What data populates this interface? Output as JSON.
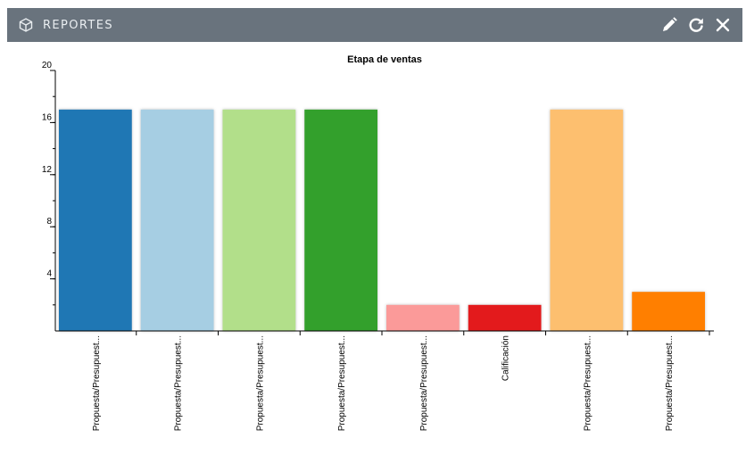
{
  "window": {
    "title": "REPORTES",
    "header_color": "#69737d",
    "icons": [
      "cube-icon",
      "pencil-icon",
      "refresh-icon",
      "close-icon"
    ]
  },
  "chart_data": {
    "type": "bar",
    "title": "Etapa de ventas",
    "xlabel": "",
    "ylabel": "",
    "ylim": [
      0,
      20
    ],
    "yticks": [
      4,
      8,
      12,
      16,
      20
    ],
    "grid": false,
    "categories": [
      "Propuesta/Presupuest...",
      "Propuesta/Presupuest...",
      "Propuesta/Presupuest...",
      "Propuesta/Presupuest...",
      "Propuesta/Presupuest...",
      "Calificación",
      "Propuesta/Presupuest...",
      "Propuesta/Presupuest..."
    ],
    "values": [
      17,
      17,
      17,
      17,
      2,
      2,
      17,
      3
    ],
    "colors": [
      "#1f77b4",
      "#a6cee3",
      "#b2df8a",
      "#33a02c",
      "#fb9a99",
      "#e31a1c",
      "#fdbf6f",
      "#ff7f00"
    ]
  }
}
